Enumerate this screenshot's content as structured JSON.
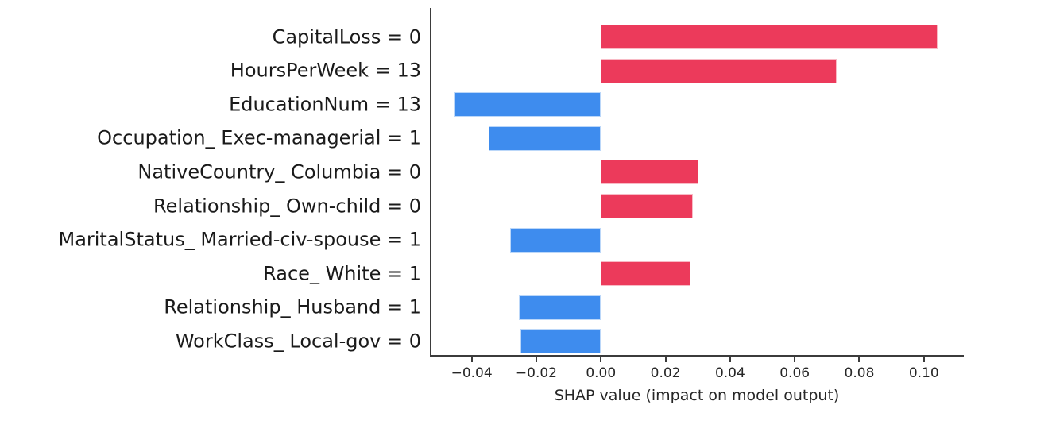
{
  "chart_data": {
    "type": "bar",
    "orientation": "horizontal",
    "title": "",
    "xlabel": "SHAP value (impact on model output)",
    "ylabel": "",
    "xlim": [
      -0.0527,
      0.1121
    ],
    "grid": false,
    "legend": "none",
    "colors": {
      "positive": "#ec3a5b",
      "negative": "#3e8cee"
    },
    "x_ticks": [
      {
        "value": -0.04,
        "label": "−0.04"
      },
      {
        "value": -0.02,
        "label": "−0.02"
      },
      {
        "value": 0.0,
        "label": "0.00"
      },
      {
        "value": 0.02,
        "label": "0.02"
      },
      {
        "value": 0.04,
        "label": "0.04"
      },
      {
        "value": 0.06,
        "label": "0.06"
      },
      {
        "value": 0.08,
        "label": "0.08"
      },
      {
        "value": 0.1,
        "label": "0.10"
      }
    ],
    "features": [
      {
        "label": "CapitalLoss = 0",
        "value": 0.1042
      },
      {
        "label": "HoursPerWeek = 13",
        "value": 0.0731
      },
      {
        "label": "EducationNum = 13",
        "value": -0.0454
      },
      {
        "label": "Occupation_ Exec-managerial = 1",
        "value": -0.0347
      },
      {
        "label": "NativeCountry_ Columbia = 0",
        "value": 0.0302
      },
      {
        "label": "Relationship_ Own-child = 0",
        "value": 0.0285
      },
      {
        "label": "MaritalStatus_ Married-civ-spouse = 1",
        "value": -0.0281
      },
      {
        "label": "Race_ White = 1",
        "value": 0.0278
      },
      {
        "label": "Relationship_ Husband = 1",
        "value": -0.0255
      },
      {
        "label": "WorkClass_ Local-gov = 0",
        "value": -0.025
      }
    ]
  }
}
